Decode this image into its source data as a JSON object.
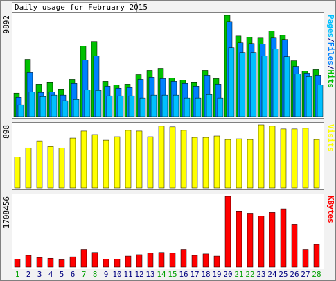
{
  "chart_data": [
    {
      "type": "grouped-bar",
      "title": "Daily usage for February 2015",
      "ylim": [
        0,
        9892
      ],
      "yticks": [
        9892
      ],
      "legend_separator": "/",
      "series": [
        {
          "name": "Pages",
          "color": "#00c0ff",
          "values": [
            1140,
            2420,
            1950,
            2090,
            1550,
            1680,
            2620,
            2560,
            2020,
            2020,
            2020,
            1820,
            2090,
            2090,
            2090,
            1820,
            1820,
            2150,
            1820,
            6730,
            6260,
            6260,
            5920,
            6590,
            5850,
            4170,
            3900,
            3100
          ]
        },
        {
          "name": "Files",
          "color": "#0080ff",
          "values": [
            1880,
            4310,
            2360,
            2420,
            2090,
            3230,
            5520,
            5920,
            2960,
            2760,
            2830,
            3630,
            3840,
            3700,
            3430,
            3230,
            2960,
            4040,
            3160,
            9290,
            7200,
            7130,
            7070,
            7670,
            7540,
            4910,
            4240,
            4040
          ]
        },
        {
          "name": "Hits",
          "color": "#00c000",
          "values": [
            2290,
            5590,
            3160,
            3370,
            2690,
            3630,
            6860,
            7340,
            3430,
            3100,
            3160,
            4100,
            4510,
            4710,
            3770,
            3570,
            3370,
            4510,
            3700,
            9892,
            7870,
            7740,
            7670,
            8350,
            7940,
            5450,
            4440,
            4580
          ]
        }
      ]
    },
    {
      "type": "bar",
      "ylim": [
        0,
        898
      ],
      "yticks": [
        898
      ],
      "series": [
        {
          "name": "Visits",
          "color": "#ffff00",
          "values": [
            440,
            570,
            670,
            590,
            570,
            710,
            810,
            760,
            680,
            730,
            820,
            810,
            730,
            880,
            870,
            820,
            720,
            720,
            740,
            690,
            700,
            690,
            898,
            880,
            840,
            840,
            850,
            690
          ]
        }
      ]
    },
    {
      "type": "bar",
      "ylim": [
        0,
        1708456
      ],
      "yticks": [
        1708456
      ],
      "categories": [
        "1",
        "2",
        "3",
        "4",
        "5",
        "6",
        "7",
        "8",
        "9",
        "10",
        "11",
        "12",
        "13",
        "14",
        "15",
        "16",
        "17",
        "18",
        "19",
        "20",
        "21",
        "22",
        "23",
        "24",
        "25",
        "26",
        "27",
        "28"
      ],
      "category_colors": [
        "#00a000",
        "#000080",
        "#000080",
        "#000080",
        "#000080",
        "#000080",
        "#00a000",
        "#00a000",
        "#000080",
        "#000080",
        "#000080",
        "#000080",
        "#000080",
        "#00a000",
        "#00a000",
        "#000080",
        "#000080",
        "#000080",
        "#000080",
        "#000080",
        "#00a000",
        "#00a000",
        "#000080",
        "#000080",
        "#000080",
        "#000080",
        "#000080",
        "#00a000"
      ],
      "series": [
        {
          "name": "KBytes",
          "color": "#ff0000",
          "values": [
            195800,
            284800,
            231400,
            213600,
            178000,
            249200,
            427100,
            355900,
            195800,
            195800,
            267000,
            302500,
            338100,
            355900,
            338100,
            427100,
            284800,
            320300,
            267000,
            1708456,
            1352600,
            1299200,
            1228000,
            1317000,
            1406000,
            1032200,
            427100,
            551700
          ]
        }
      ]
    }
  ]
}
